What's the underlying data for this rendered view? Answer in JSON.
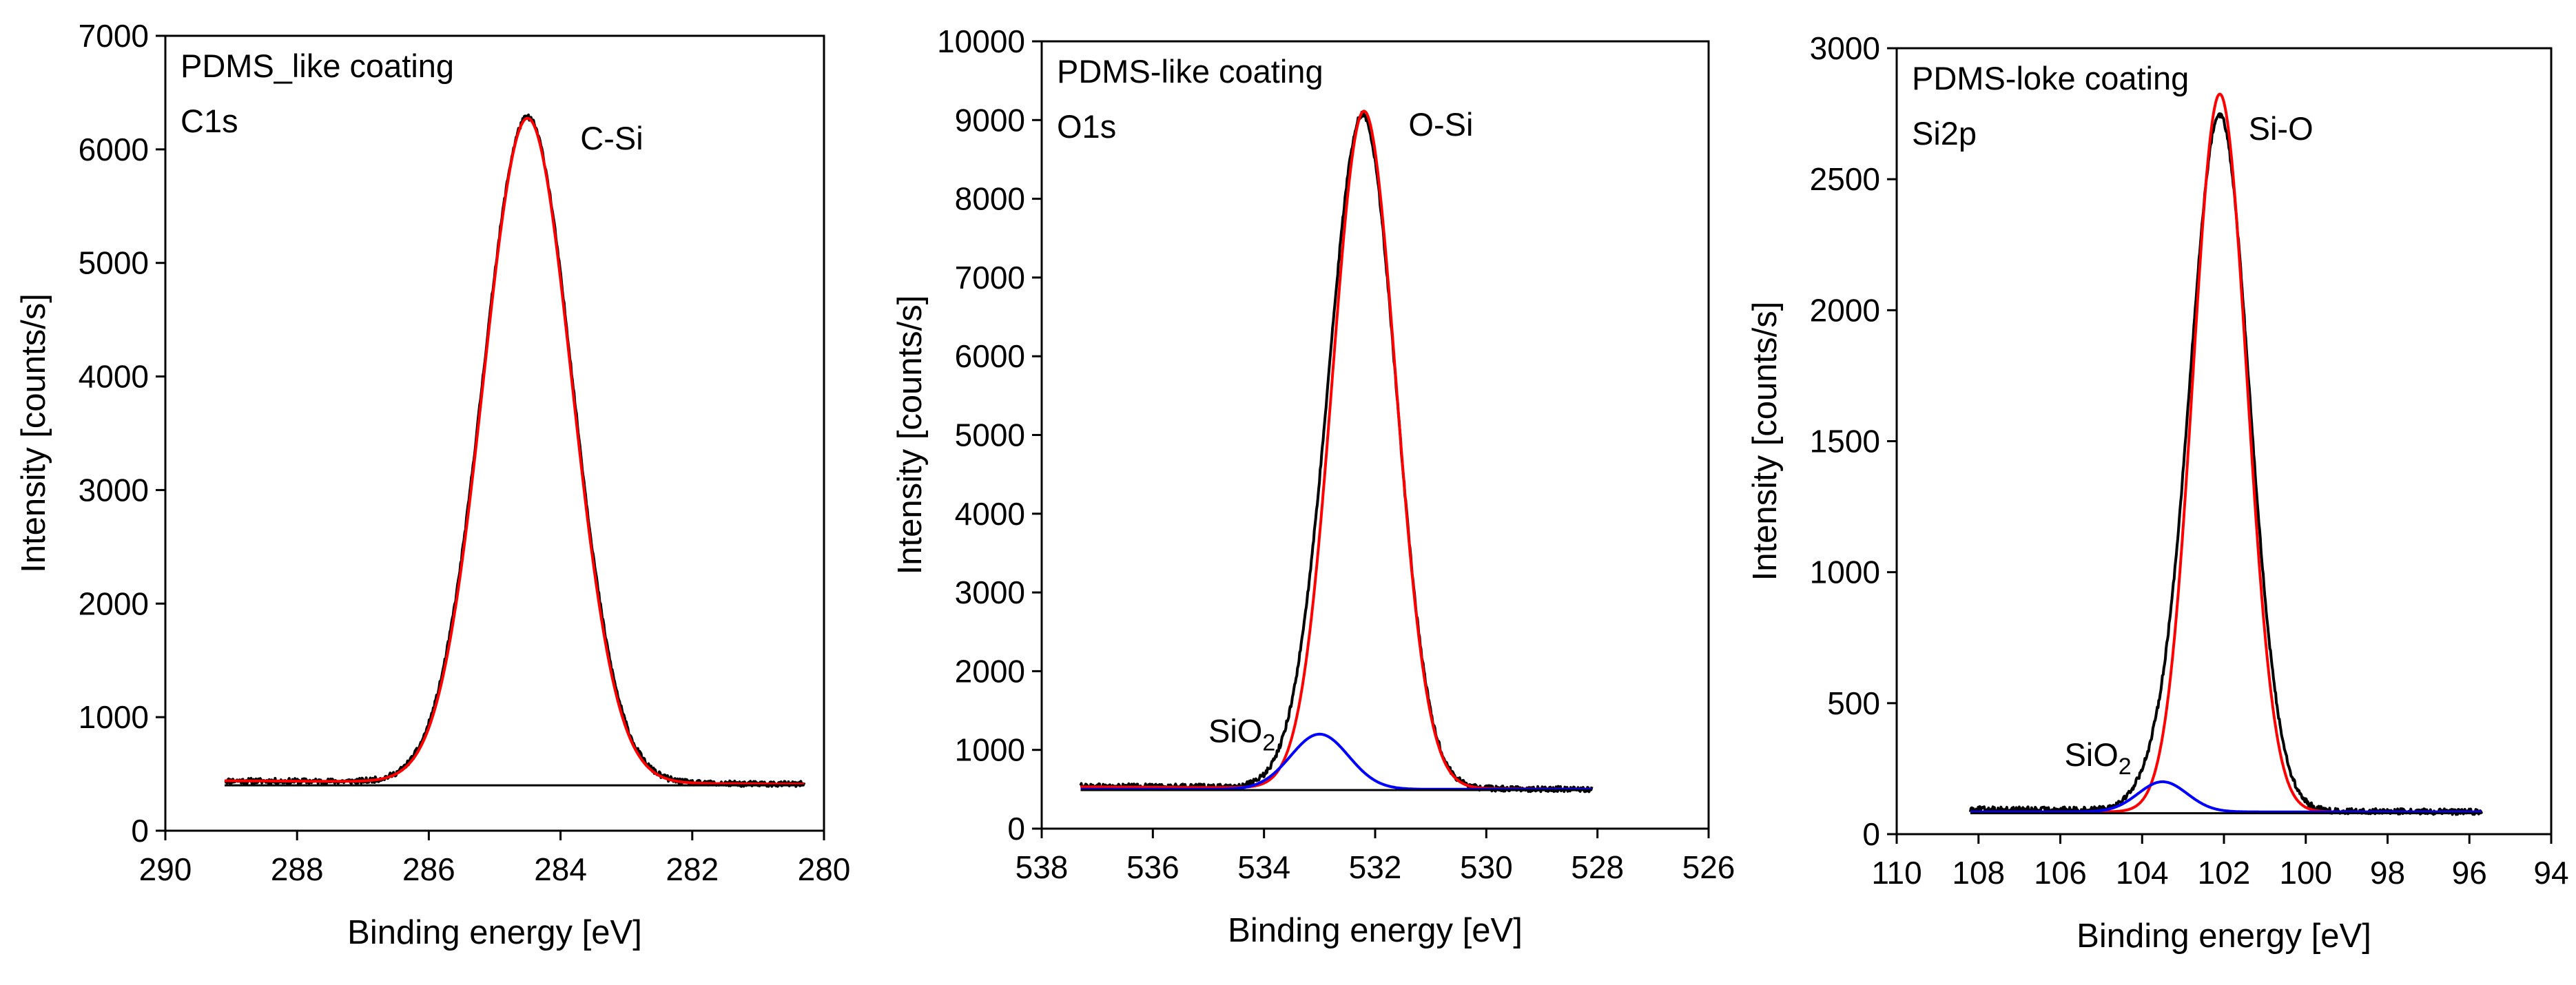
{
  "chart_data": [
    {
      "type": "line",
      "title": "PDMS_like coating",
      "subtitle": "C1s",
      "xlabel": "Binding energy [eV]",
      "ylabel": "Intensity [counts/s]",
      "xlim": [
        290,
        280
      ],
      "ylim": [
        0,
        7000
      ],
      "xticks": [
        290,
        288,
        286,
        284,
        282,
        280
      ],
      "xtick_labels": [
        "290",
        "288",
        "286",
        "284",
        "282",
        "280"
      ],
      "yticks": [
        0,
        1000,
        2000,
        3000,
        4000,
        5000,
        6000,
        7000
      ],
      "ytick_labels": [
        "0",
        "1000",
        "2000",
        "3000",
        "4000",
        "5000",
        "6000",
        "7000"
      ],
      "annotations": [
        {
          "text": "C-Si",
          "x": 283.7,
          "y": 6000
        }
      ],
      "series": [
        {
          "name": "measured",
          "color": "#000000",
          "kind": "measured",
          "x_range": [
            289.1,
            280.3
          ],
          "baseline": 410,
          "tail": 30,
          "peaks": [
            {
              "center": 284.5,
              "amp": 5860,
              "sigma": 0.68
            }
          ]
        },
        {
          "name": "fit C-Si",
          "color": "#ff0000",
          "kind": "fit",
          "x_range": [
            289.1,
            280.3
          ],
          "baseline": 410,
          "tail": 30,
          "peaks": [
            {
              "center": 284.5,
              "amp": 5850,
              "sigma": 0.67
            }
          ]
        },
        {
          "name": "background",
          "color": "#000000",
          "kind": "line",
          "x_range": [
            289.1,
            280.3
          ],
          "baseline": 400,
          "tail": 0,
          "peaks": []
        }
      ]
    },
    {
      "type": "line",
      "title": "PDMS-like coating",
      "subtitle": "O1s",
      "xlabel": "Binding energy [eV]",
      "ylabel": "Intensity [counts/s]",
      "xlim": [
        538,
        526
      ],
      "ylim": [
        0,
        10000
      ],
      "xticks": [
        538,
        536,
        534,
        532,
        530,
        528,
        526
      ],
      "xtick_labels": [
        "538",
        "536",
        "534",
        "532",
        "530",
        "528",
        "526"
      ],
      "yticks": [
        0,
        1000,
        2000,
        3000,
        4000,
        5000,
        6000,
        7000,
        8000,
        9000,
        10000
      ],
      "ytick_labels": [
        "0",
        "1000",
        "2000",
        "3000",
        "4000",
        "5000",
        "6000",
        "7000",
        "8000",
        "9000",
        "10000"
      ],
      "annotations": [
        {
          "text": "O-Si",
          "x": 531.4,
          "y": 8800
        },
        {
          "text": "SiO",
          "sub": "2",
          "x": 535.0,
          "y": 1100
        }
      ],
      "series": [
        {
          "name": "measured",
          "color": "#000000",
          "kind": "measured",
          "x_range": [
            537.3,
            528.1
          ],
          "baseline": 500,
          "tail": 40,
          "peaks": [
            {
              "center": 532.2,
              "amp": 8350,
              "sigma": 0.58
            },
            {
              "center": 533.0,
              "amp": 700,
              "sigma": 0.5
            }
          ]
        },
        {
          "name": "fit O-Si",
          "color": "#ff0000",
          "kind": "fit",
          "x_range": [
            537.3,
            528.1
          ],
          "baseline": 500,
          "tail": 30,
          "peaks": [
            {
              "center": 532.2,
              "amp": 8600,
              "sigma": 0.57
            }
          ]
        },
        {
          "name": "fit SiO2",
          "color": "#0000ff",
          "kind": "fit",
          "x_range": [
            537.3,
            528.1
          ],
          "baseline": 500,
          "tail": 0,
          "peaks": [
            {
              "center": 533.0,
              "amp": 700,
              "sigma": 0.52
            }
          ]
        },
        {
          "name": "background",
          "color": "#000000",
          "kind": "line",
          "x_range": [
            537.3,
            528.1
          ],
          "baseline": 490,
          "tail": 0,
          "peaks": []
        }
      ]
    },
    {
      "type": "line",
      "title": "PDMS-loke coating",
      "subtitle": "Si2p",
      "xlabel": "Binding energy [eV]",
      "ylabel": "Intensity [counts/s]",
      "xlim": [
        110,
        94
      ],
      "ylim": [
        0,
        3000
      ],
      "xticks": [
        110,
        108,
        106,
        104,
        102,
        100,
        98,
        96,
        94
      ],
      "xtick_labels": [
        "110",
        "108",
        "106",
        "104",
        "102",
        "100",
        "98",
        "96",
        "94"
      ],
      "yticks": [
        0,
        500,
        1000,
        1500,
        2000,
        2500,
        3000
      ],
      "ytick_labels": [
        "0",
        "500",
        "1000",
        "1500",
        "2000",
        "2500",
        "3000"
      ],
      "annotations": [
        {
          "text": "Si-O",
          "x": 101.4,
          "y": 2650
        },
        {
          "text": "SiO",
          "sub": "2",
          "x": 105.9,
          "y": 260
        }
      ],
      "series": [
        {
          "name": "measured",
          "color": "#000000",
          "kind": "measured",
          "x_range": [
            108.2,
            95.7
          ],
          "baseline": 85,
          "tail": 10,
          "peaks": [
            {
              "center": 102.1,
              "amp": 2650,
              "sigma": 0.72
            },
            {
              "center": 103.5,
              "amp": 110,
              "sigma": 0.6
            }
          ]
        },
        {
          "name": "fit Si-O",
          "color": "#ff0000",
          "kind": "fit",
          "x_range": [
            108.2,
            95.7
          ],
          "baseline": 85,
          "tail": 0,
          "peaks": [
            {
              "center": 102.1,
              "amp": 2740,
              "sigma": 0.66
            }
          ]
        },
        {
          "name": "fit SiO2",
          "color": "#0000ff",
          "kind": "fit",
          "x_range": [
            108.2,
            95.7
          ],
          "baseline": 85,
          "tail": 0,
          "peaks": [
            {
              "center": 103.5,
              "amp": 115,
              "sigma": 0.6
            }
          ]
        },
        {
          "name": "background",
          "color": "#000000",
          "kind": "line",
          "x_range": [
            108.2,
            95.7
          ],
          "baseline": 80,
          "tail": 0,
          "peaks": []
        }
      ]
    }
  ]
}
